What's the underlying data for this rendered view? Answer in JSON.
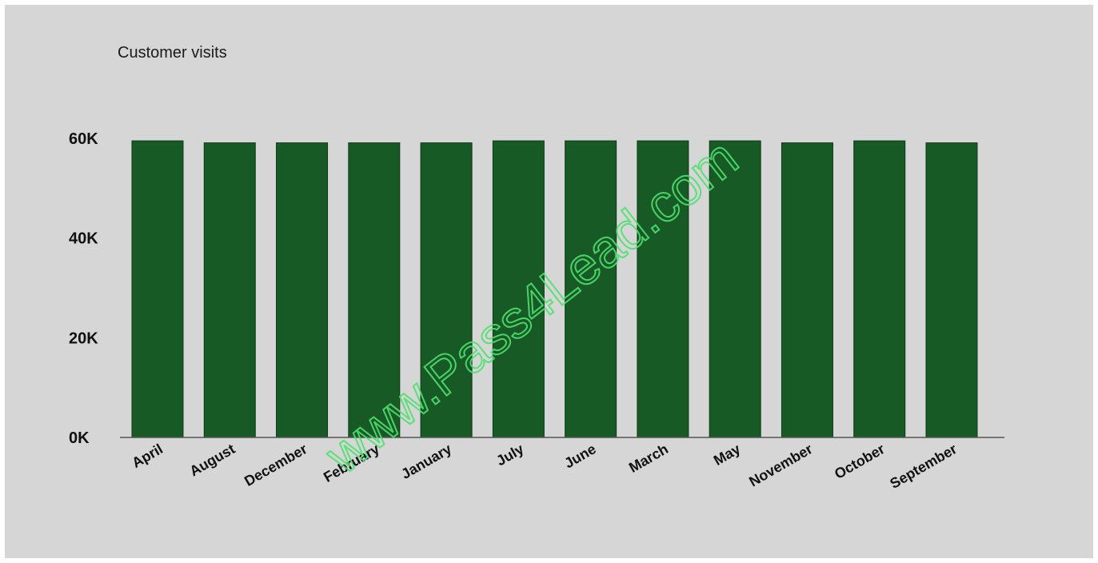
{
  "chart_data": {
    "type": "bar",
    "title": "Customer visits",
    "xlabel": "",
    "ylabel": "",
    "categories": [
      "April",
      "August",
      "December",
      "February",
      "January",
      "July",
      "June",
      "March",
      "May",
      "November",
      "October",
      "September"
    ],
    "values": [
      59500,
      59100,
      59100,
      59100,
      59100,
      59500,
      59500,
      59500,
      59500,
      59100,
      59500,
      59100
    ],
    "ylim": [
      0,
      60000
    ],
    "yticks": [
      0,
      20000,
      40000,
      60000
    ],
    "ytick_labels": [
      "0K",
      "20K",
      "40K",
      "60K"
    ],
    "grid": false,
    "colors": {
      "bar": "#175a25",
      "bar_edge": "#0d3a16",
      "axis": "#555555",
      "background": "#d6d6d6"
    }
  },
  "watermark": "www.Pass4Lead.com"
}
